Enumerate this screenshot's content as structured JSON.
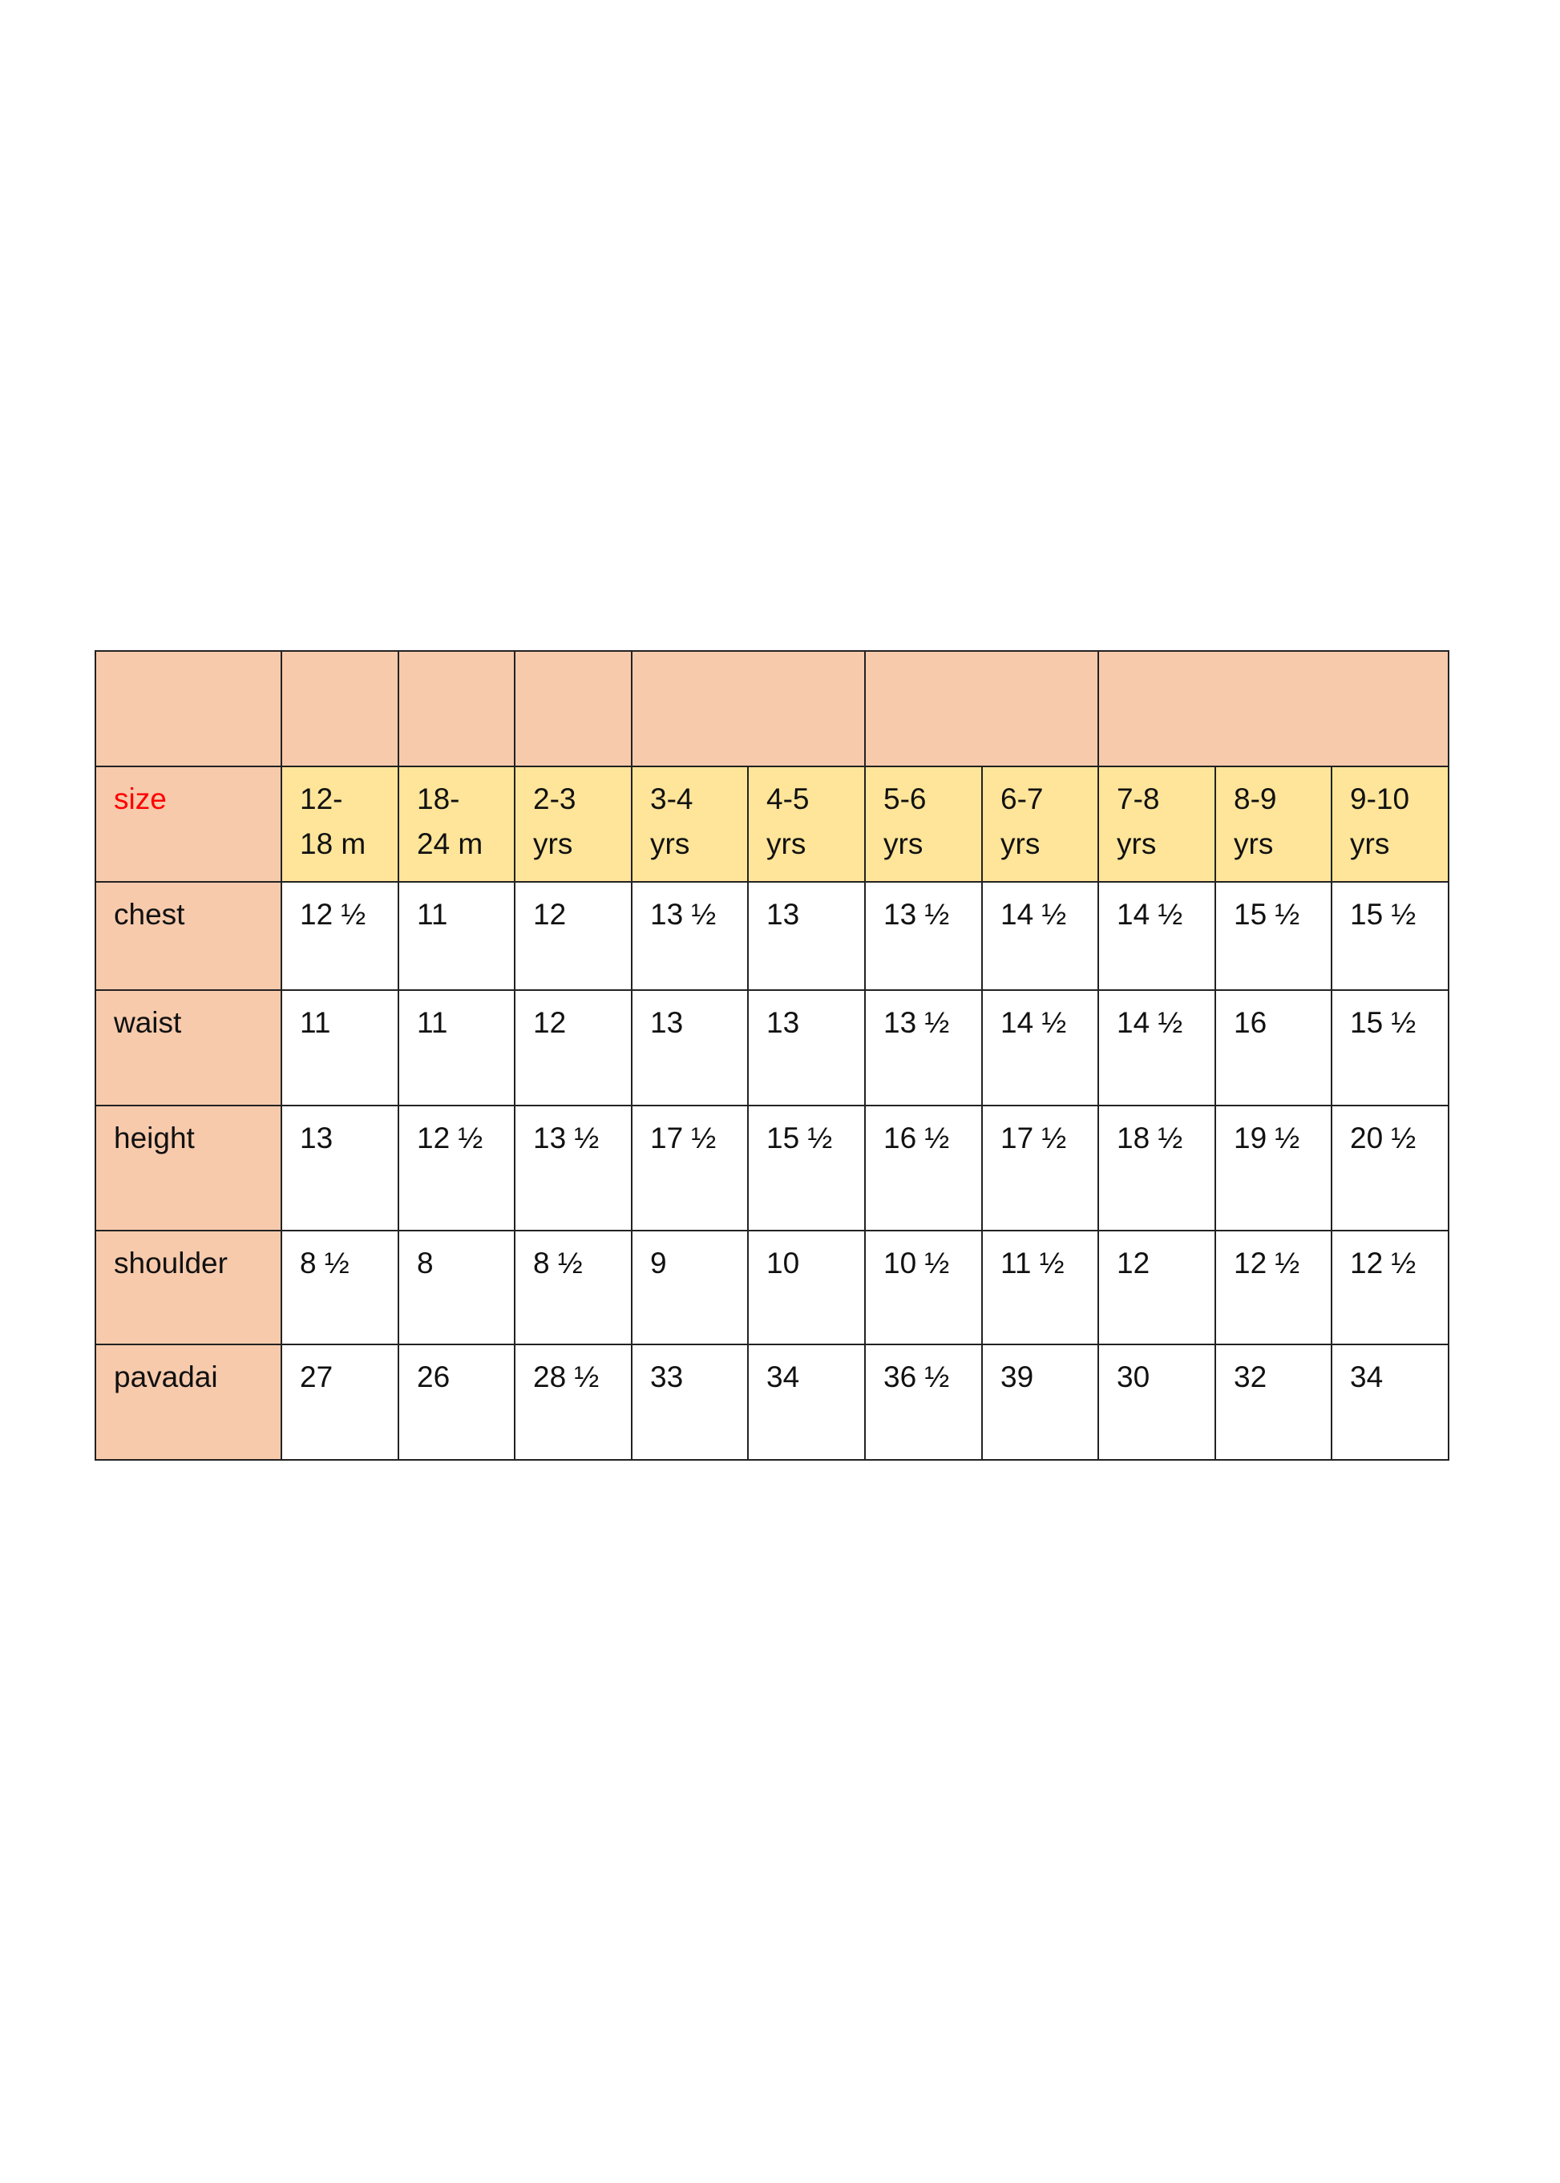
{
  "colors": {
    "label_column": "#F7CAAC",
    "size_row": "#FFE599",
    "size_label": "#FF0000",
    "data_cells": "#FFFFFF"
  },
  "table": {
    "header_spans": [
      1,
      1,
      1,
      1,
      2,
      2,
      3
    ],
    "size_label": "size",
    "sizes": [
      [
        "12-",
        "18 m"
      ],
      [
        "18-",
        "24 m"
      ],
      [
        "2-3",
        "yrs"
      ],
      [
        "3-4",
        "yrs"
      ],
      [
        "4-5",
        "yrs"
      ],
      [
        "5-6",
        "yrs"
      ],
      [
        "6-7",
        "yrs"
      ],
      [
        "7-8",
        "yrs"
      ],
      [
        "8-9",
        "yrs"
      ],
      [
        "9-10",
        "yrs"
      ]
    ],
    "rows": [
      {
        "label": "chest",
        "values": [
          "12 ½",
          "11",
          "12",
          "13 ½",
          "13",
          "13 ½",
          "14 ½",
          "14 ½",
          "15 ½",
          "15 ½"
        ]
      },
      {
        "label": "waist",
        "values": [
          "11",
          "11",
          "12",
          "13",
          "13",
          "13 ½",
          "14 ½",
          "14 ½",
          "16",
          "15 ½"
        ]
      },
      {
        "label": "height",
        "values": [
          "13",
          "12 ½",
          "13 ½",
          "17 ½",
          "15 ½",
          "16 ½",
          "17 ½",
          "18 ½",
          "19 ½",
          "20 ½"
        ]
      },
      {
        "label": "shoulder",
        "values": [
          "8 ½",
          "8",
          "8 ½",
          "9",
          "10",
          "10 ½",
          "11 ½",
          "12",
          "12 ½",
          "12 ½"
        ]
      },
      {
        "label": "pavadai",
        "values": [
          "27",
          "26",
          "28 ½",
          "33",
          "34",
          "36 ½",
          "39",
          "30",
          "32",
          "34"
        ]
      }
    ]
  }
}
